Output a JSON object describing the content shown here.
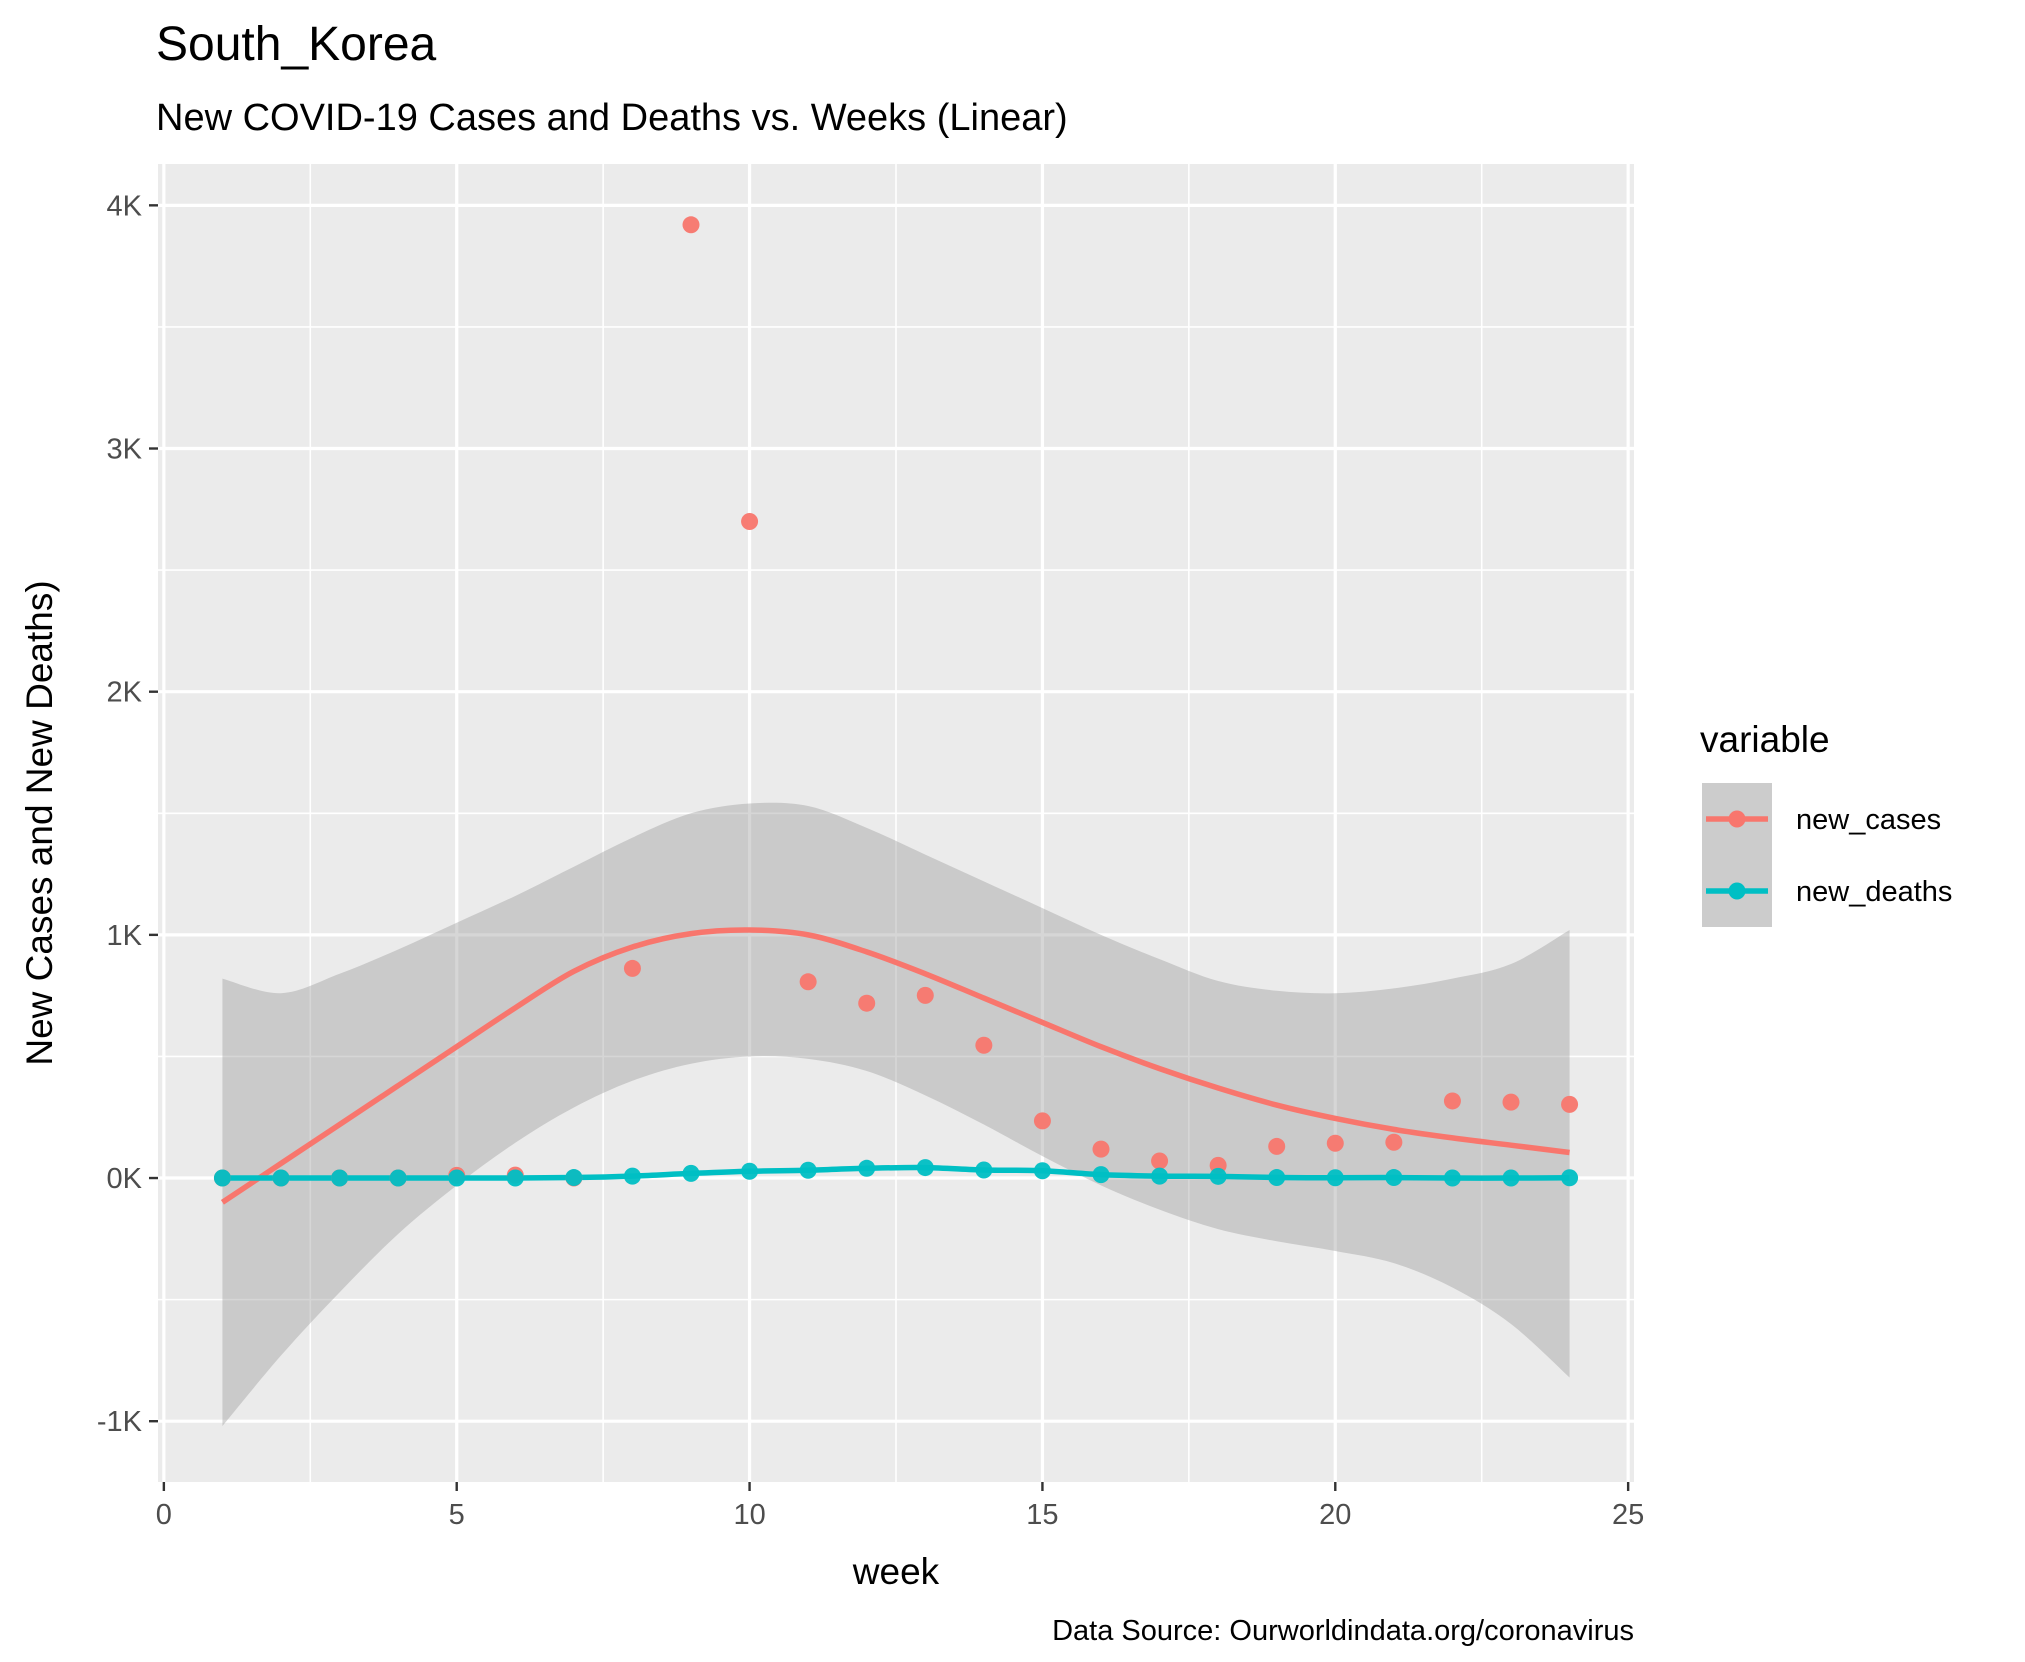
{
  "chart_data": {
    "type": "scatter",
    "title": "South_Korea",
    "subtitle": "New COVID-19 Cases and Deaths vs. Weeks (Linear)",
    "xlabel": "week",
    "ylabel": "New Cases and New Deaths)",
    "caption": "Data Source: Ourworldindata.org/coronavirus",
    "xlim": [
      -0.1,
      25.1
    ],
    "ylim": [
      -1250,
      4170
    ],
    "x_ticks": [
      0,
      5,
      10,
      15,
      20,
      25
    ],
    "x_tick_labels": [
      "0",
      "5",
      "10",
      "15",
      "20",
      "25"
    ],
    "y_ticks": [
      -1000,
      0,
      1000,
      2000,
      3000,
      4000
    ],
    "y_tick_labels": [
      "-1K",
      "0K",
      "1K",
      "2K",
      "3K",
      "4K"
    ],
    "grid": true,
    "legend": {
      "title": "variable",
      "position": "right"
    },
    "series": [
      {
        "name": "new_cases",
        "color": "#F8766D",
        "points": {
          "x": [
            1,
            2,
            3,
            4,
            5,
            6,
            7,
            8,
            9,
            10,
            11,
            12,
            13,
            14,
            15,
            16,
            17,
            18,
            19,
            20,
            21,
            22,
            23,
            24
          ],
          "y": [
            0,
            0,
            0,
            0,
            11,
            12,
            0,
            862,
            3920,
            2700,
            807,
            719,
            751,
            546,
            235,
            119,
            70,
            52,
            130,
            143,
            147,
            317,
            312,
            303
          ]
        },
        "smooth": {
          "x": [
            1,
            2,
            3,
            4,
            5,
            6,
            7,
            8,
            9,
            10,
            11,
            12,
            13,
            14,
            15,
            16,
            17,
            18,
            19,
            20,
            21,
            22,
            23,
            24
          ],
          "y": [
            -100,
            60,
            220,
            380,
            540,
            700,
            850,
            950,
            1005,
            1020,
            1000,
            930,
            840,
            740,
            640,
            540,
            450,
            370,
            300,
            245,
            200,
            165,
            135,
            105
          ]
        },
        "band": {
          "x": [
            1,
            2,
            3,
            4,
            5,
            6,
            7,
            8,
            9,
            10,
            11,
            12,
            13,
            14,
            15,
            16,
            17,
            18,
            19,
            20,
            21,
            22,
            23,
            24
          ],
          "lower": [
            -1020,
            -730,
            -470,
            -230,
            -30,
            145,
            290,
            400,
            470,
            500,
            490,
            440,
            340,
            220,
            90,
            -30,
            -130,
            -210,
            -260,
            -300,
            -350,
            -450,
            -600,
            -820
          ],
          "upper": [
            820,
            760,
            840,
            940,
            1050,
            1160,
            1280,
            1400,
            1500,
            1540,
            1530,
            1440,
            1330,
            1220,
            1110,
            1000,
            900,
            810,
            770,
            760,
            780,
            820,
            880,
            1020
          ]
        }
      },
      {
        "name": "new_deaths",
        "color": "#00BFC4",
        "points": {
          "x": [
            1,
            2,
            3,
            4,
            5,
            6,
            7,
            8,
            9,
            10,
            11,
            12,
            13,
            14,
            15,
            16,
            17,
            18,
            19,
            20,
            21,
            22,
            23,
            24
          ],
          "y": [
            0,
            0,
            0,
            0,
            0,
            0,
            2,
            8,
            19,
            28,
            32,
            40,
            43,
            33,
            30,
            14,
            8,
            7,
            2,
            1,
            2,
            0,
            0,
            1
          ]
        },
        "smooth": {
          "x": [
            1,
            2,
            3,
            4,
            5,
            6,
            7,
            8,
            9,
            10,
            11,
            12,
            13,
            14,
            15,
            16,
            17,
            18,
            19,
            20,
            21,
            22,
            23,
            24
          ],
          "y": [
            0,
            0,
            0,
            0,
            0,
            0,
            2,
            8,
            19,
            28,
            32,
            40,
            43,
            33,
            30,
            14,
            8,
            7,
            2,
            1,
            2,
            0,
            0,
            1
          ]
        }
      }
    ]
  }
}
